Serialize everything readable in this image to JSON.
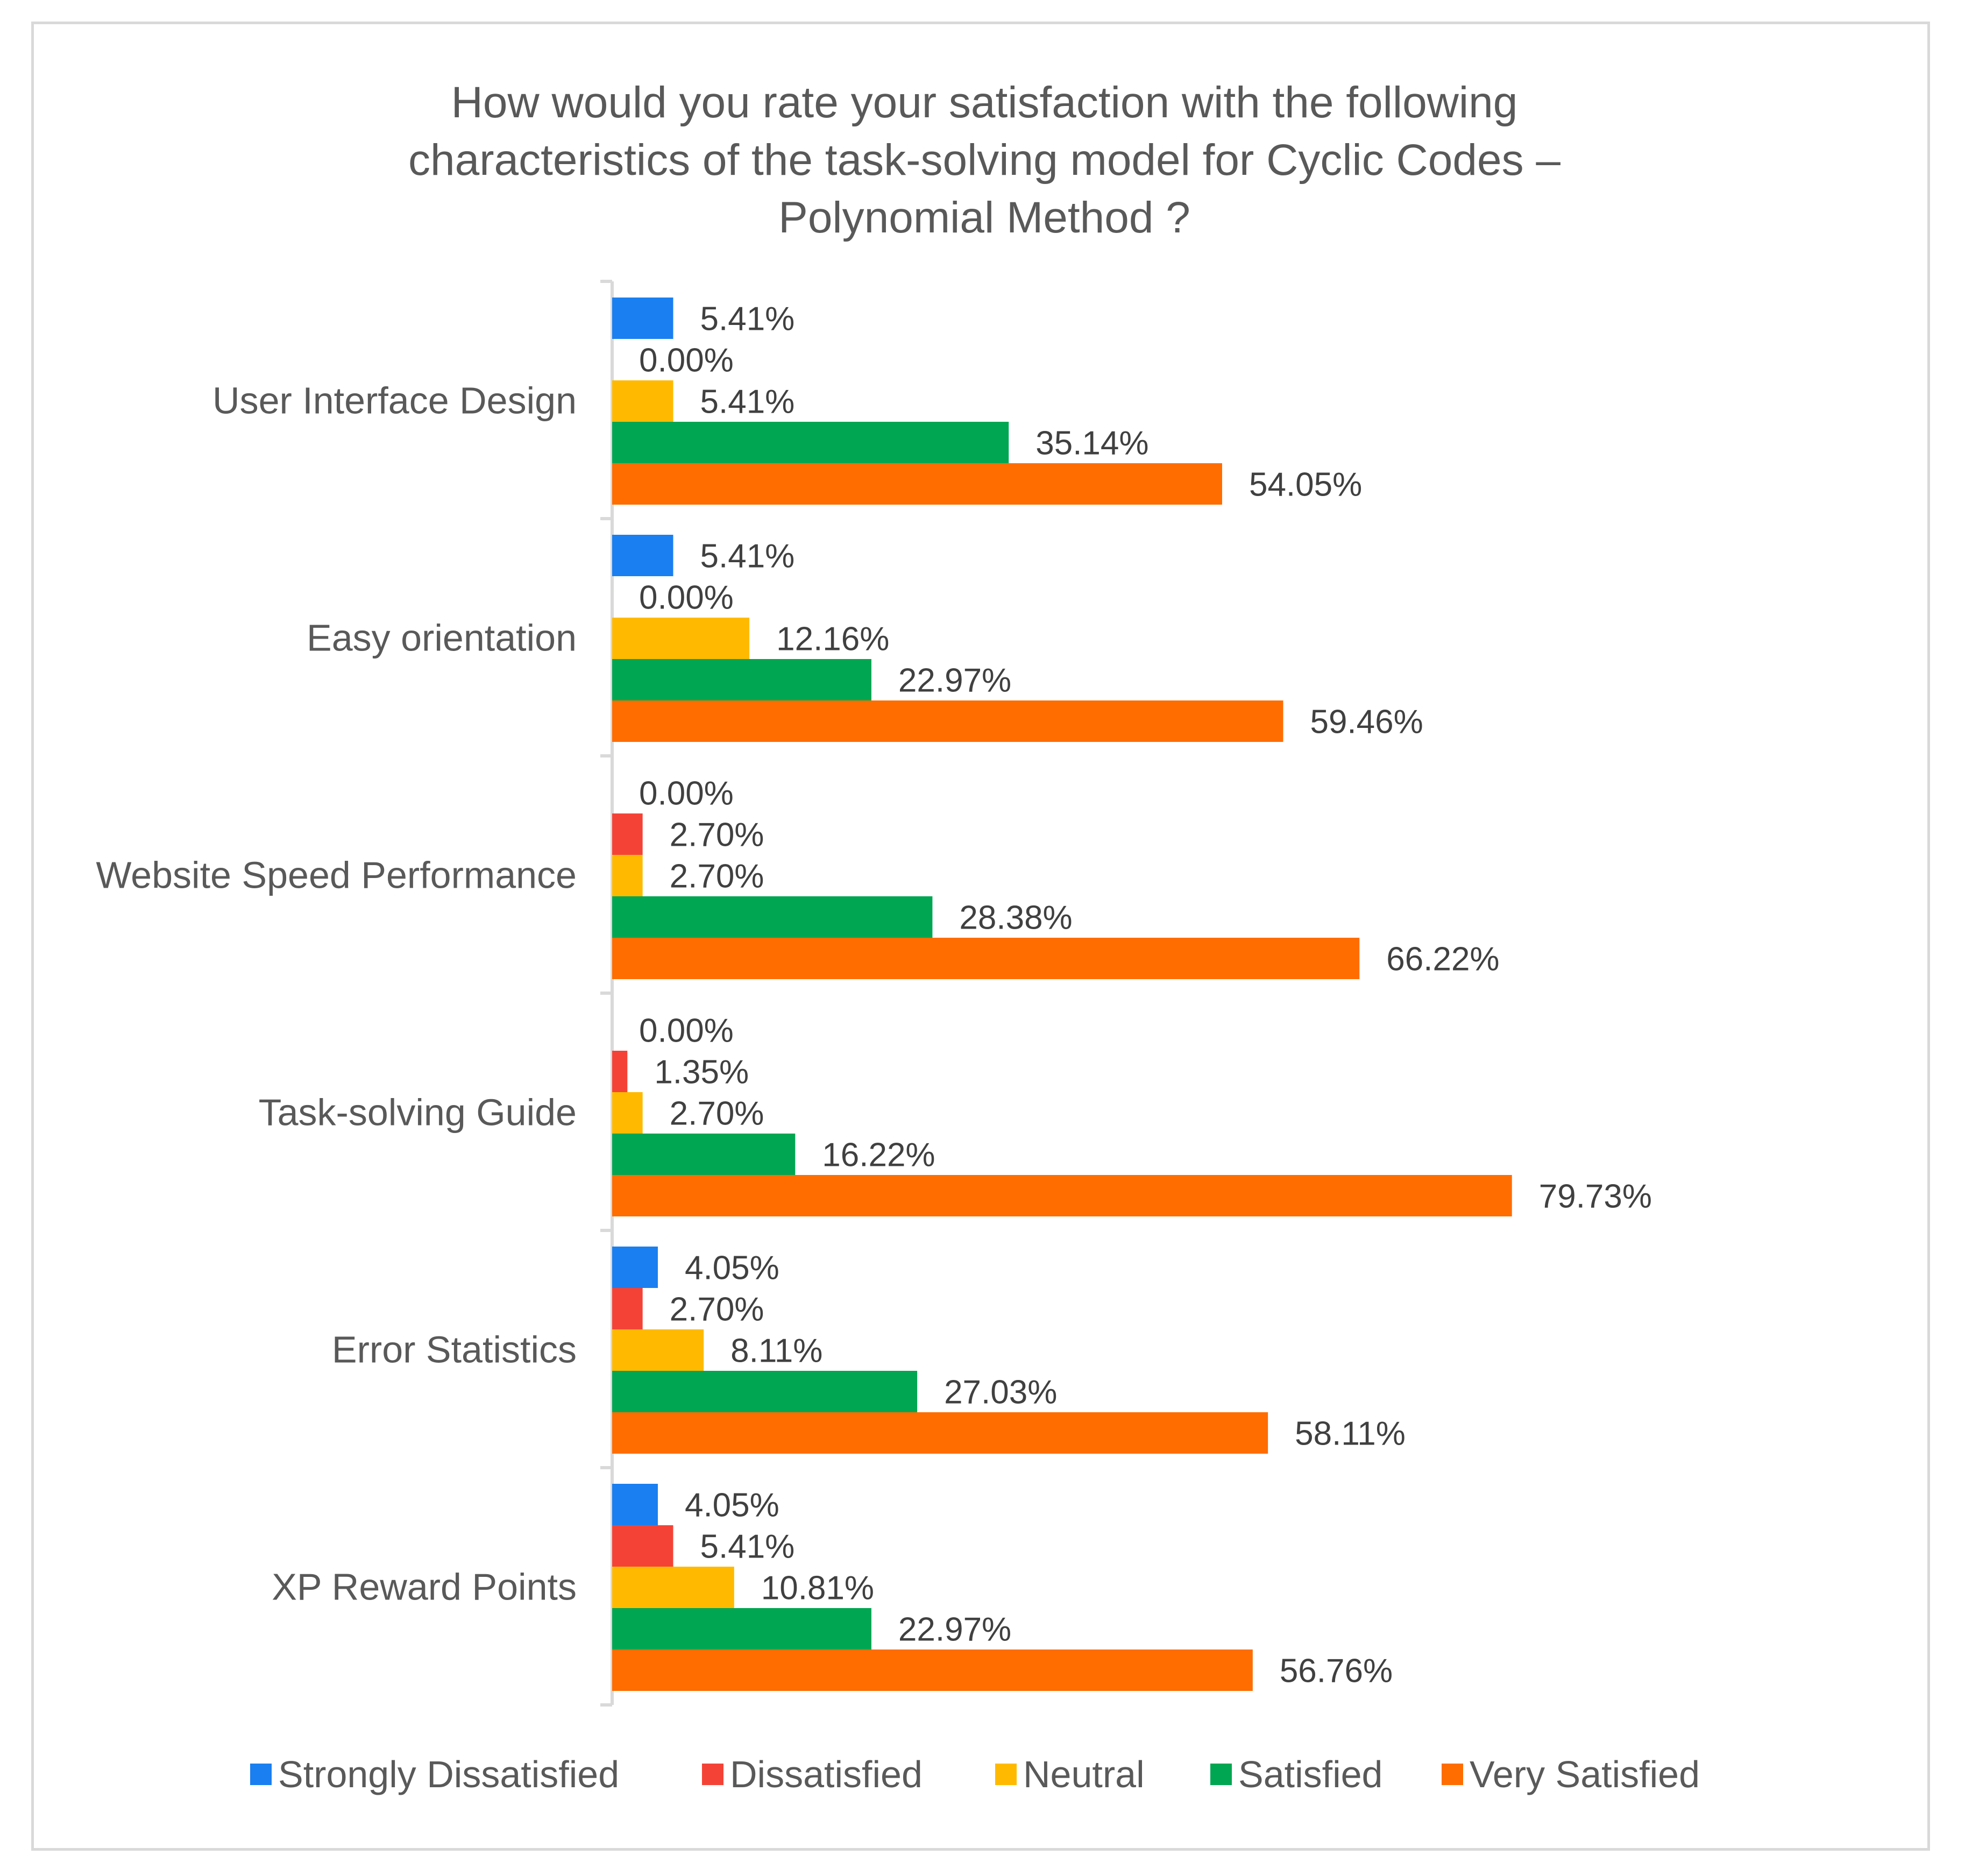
{
  "chart_data": {
    "type": "bar",
    "orientation": "horizontal",
    "title": "How would you rate your satisfaction with the following characteristics of the task-solving model for Cyclic Codes – Polynomial Method ?",
    "title_lines": [
      "How would you rate your satisfaction with the following",
      "characteristics of the task-solving model for Cyclic Codes –",
      "Polynomial Method ?"
    ],
    "categories": [
      "User Interface Design",
      "Easy orientation",
      "Website Speed Performance",
      "Task-solving Guide",
      "Error Statistics",
      "XP Reward Points"
    ],
    "series": [
      {
        "name": "Strongly Dissatisfied",
        "color": "#1a7ff0",
        "values": [
          5.41,
          5.41,
          0.0,
          0.0,
          4.05,
          4.05
        ],
        "labels": [
          "5.41%",
          "5.41%",
          "0.00%",
          "0.00%",
          "4.05%",
          "4.05%"
        ]
      },
      {
        "name": "Dissatisfied",
        "color": "#f44336",
        "values": [
          0.0,
          0.0,
          2.7,
          1.35,
          2.7,
          5.41
        ],
        "labels": [
          "0.00%",
          "0.00%",
          "2.70%",
          "1.35%",
          "2.70%",
          "5.41%"
        ]
      },
      {
        "name": "Neutral",
        "color": "#ffba00",
        "values": [
          5.41,
          12.16,
          2.7,
          2.7,
          8.11,
          10.81
        ],
        "labels": [
          "5.41%",
          "12.16%",
          "2.70%",
          "2.70%",
          "8.11%",
          "10.81%"
        ]
      },
      {
        "name": "Satisfied",
        "color": "#00a651",
        "values": [
          35.14,
          22.97,
          28.38,
          16.22,
          27.03,
          22.97
        ],
        "labels": [
          "35.14%",
          "22.97%",
          "28.38%",
          "16.22%",
          "27.03%",
          "22.97%"
        ]
      },
      {
        "name": "Very Satisfied",
        "color": "#ff6d00",
        "values": [
          54.05,
          59.46,
          66.22,
          79.73,
          58.11,
          56.76
        ],
        "labels": [
          "54.05%",
          "59.46%",
          "66.22%",
          "79.73%",
          "58.11%",
          "56.76%"
        ]
      }
    ],
    "xlim": [
      0,
      100
    ],
    "xlabel": "",
    "ylabel": "",
    "grid": false,
    "legend_position": "bottom"
  }
}
